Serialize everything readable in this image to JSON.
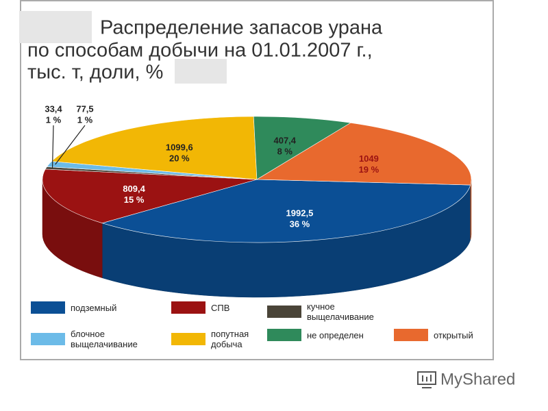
{
  "chart_data": {
    "type": "pie3d",
    "title_lines": [
      "Распределение запасов урана",
      "по способам добычи на 01.01.2007 г.,",
      "тыс. т, доли, %"
    ],
    "categories": [
      "подземный",
      "СПВ",
      "кучное выщелачивание",
      "блочное выщелачивание",
      "попутная добыча",
      "не определен",
      "открытый"
    ],
    "values": [
      1992.5,
      809.4,
      33.4,
      77.5,
      1099.6,
      407.4,
      1049
    ],
    "value_labels": [
      "1992,5",
      "809,4",
      "33,4",
      "77,5",
      "1099,6",
      "407,4",
      "1049"
    ],
    "share_values": [
      36,
      15,
      1,
      1,
      20,
      8,
      19
    ],
    "share_labels": [
      "36 %",
      "15 %",
      "1 %",
      "1 %",
      "20 %",
      "8 %",
      "19 %"
    ],
    "colors": [
      "#0b4f95",
      "#9b1212",
      "#4a4438",
      "#6cbbe8",
      "#f2b705",
      "#2f8a5b",
      "#e8692e"
    ],
    "label_colors": [
      "#ffffff",
      "#ffffff",
      "#222222",
      "#222222",
      "#222222",
      "#222222",
      "#9b1212"
    ]
  },
  "watermark": "MyShared"
}
